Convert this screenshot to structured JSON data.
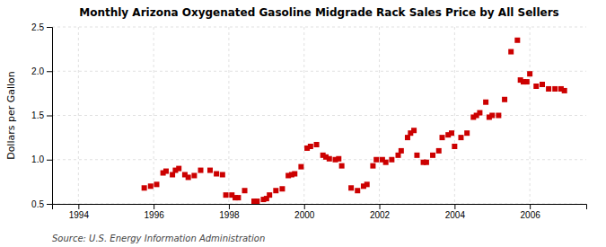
{
  "chart_data": {
    "type": "scatter",
    "title": "Monthly Arizona Oxygenated Gasoline Midgrade Rack Sales Price by All Sellers",
    "y_label": "Dollars per Gallon",
    "annotations": [
      "Source: U.S. Energy Information Administration"
    ],
    "color": "#cc0000",
    "marker": "square",
    "grid": true,
    "xlim": [
      1993.3,
      2007.5
    ],
    "ylim": [
      0.5,
      2.5
    ],
    "xticks": [
      1994,
      1996,
      1998,
      2000,
      2002,
      2004,
      2006
    ],
    "yticks": [
      0.5,
      {
        "value": 1.0,
        "label": "1.0"
      },
      {
        "value": 1.5,
        "label": "1.5"
      },
      {
        "value": 2.0,
        "label": "2.0"
      },
      {
        "value": 2.5,
        "label": "2.5"
      }
    ],
    "x": [
      1995.75,
      1995.92,
      1996.08,
      1996.25,
      1996.33,
      1996.5,
      1996.58,
      1996.67,
      1996.83,
      1996.92,
      1997.08,
      1997.25,
      1997.5,
      1997.67,
      1997.83,
      1997.92,
      1998.08,
      1998.17,
      1998.25,
      1998.42,
      1998.67,
      1998.75,
      1998.92,
      1999.0,
      1999.08,
      1999.25,
      1999.42,
      1999.58,
      1999.67,
      1999.75,
      1999.92,
      2000.08,
      2000.17,
      2000.33,
      2000.5,
      2000.58,
      2000.67,
      2000.83,
      2000.92,
      2001.0,
      2001.25,
      2001.42,
      2001.58,
      2001.67,
      2001.83,
      2001.92,
      2002.08,
      2002.17,
      2002.33,
      2002.5,
      2002.58,
      2002.75,
      2002.83,
      2002.92,
      2003.0,
      2003.17,
      2003.25,
      2003.42,
      2003.58,
      2003.67,
      2003.83,
      2003.92,
      2004.0,
      2004.17,
      2004.33,
      2004.5,
      2004.58,
      2004.67,
      2004.83,
      2004.92,
      2005.0,
      2005.17,
      2005.33,
      2005.5,
      2005.67,
      2005.75,
      2005.83,
      2005.92,
      2006.0,
      2006.17,
      2006.33,
      2006.5,
      2006.67,
      2006.83,
      2006.92
    ],
    "values": [
      0.68,
      0.7,
      0.72,
      0.85,
      0.87,
      0.83,
      0.88,
      0.9,
      0.83,
      0.8,
      0.82,
      0.88,
      0.88,
      0.84,
      0.83,
      0.6,
      0.6,
      0.57,
      0.57,
      0.65,
      0.53,
      0.53,
      0.55,
      0.56,
      0.6,
      0.65,
      0.67,
      0.82,
      0.83,
      0.84,
      0.92,
      1.13,
      1.15,
      1.17,
      1.05,
      1.03,
      1.01,
      1.0,
      1.01,
      0.93,
      0.68,
      0.65,
      0.7,
      0.72,
      0.93,
      1.0,
      1.0,
      0.97,
      1.0,
      1.05,
      1.1,
      1.25,
      1.3,
      1.33,
      1.05,
      0.97,
      0.97,
      1.05,
      1.1,
      1.25,
      1.28,
      1.3,
      1.15,
      1.25,
      1.3,
      1.48,
      1.5,
      1.53,
      1.65,
      1.48,
      1.5,
      1.5,
      1.68,
      2.22,
      2.35,
      1.9,
      1.88,
      1.88,
      1.97,
      1.83,
      1.85,
      1.8,
      1.8,
      1.8,
      1.78
    ]
  }
}
